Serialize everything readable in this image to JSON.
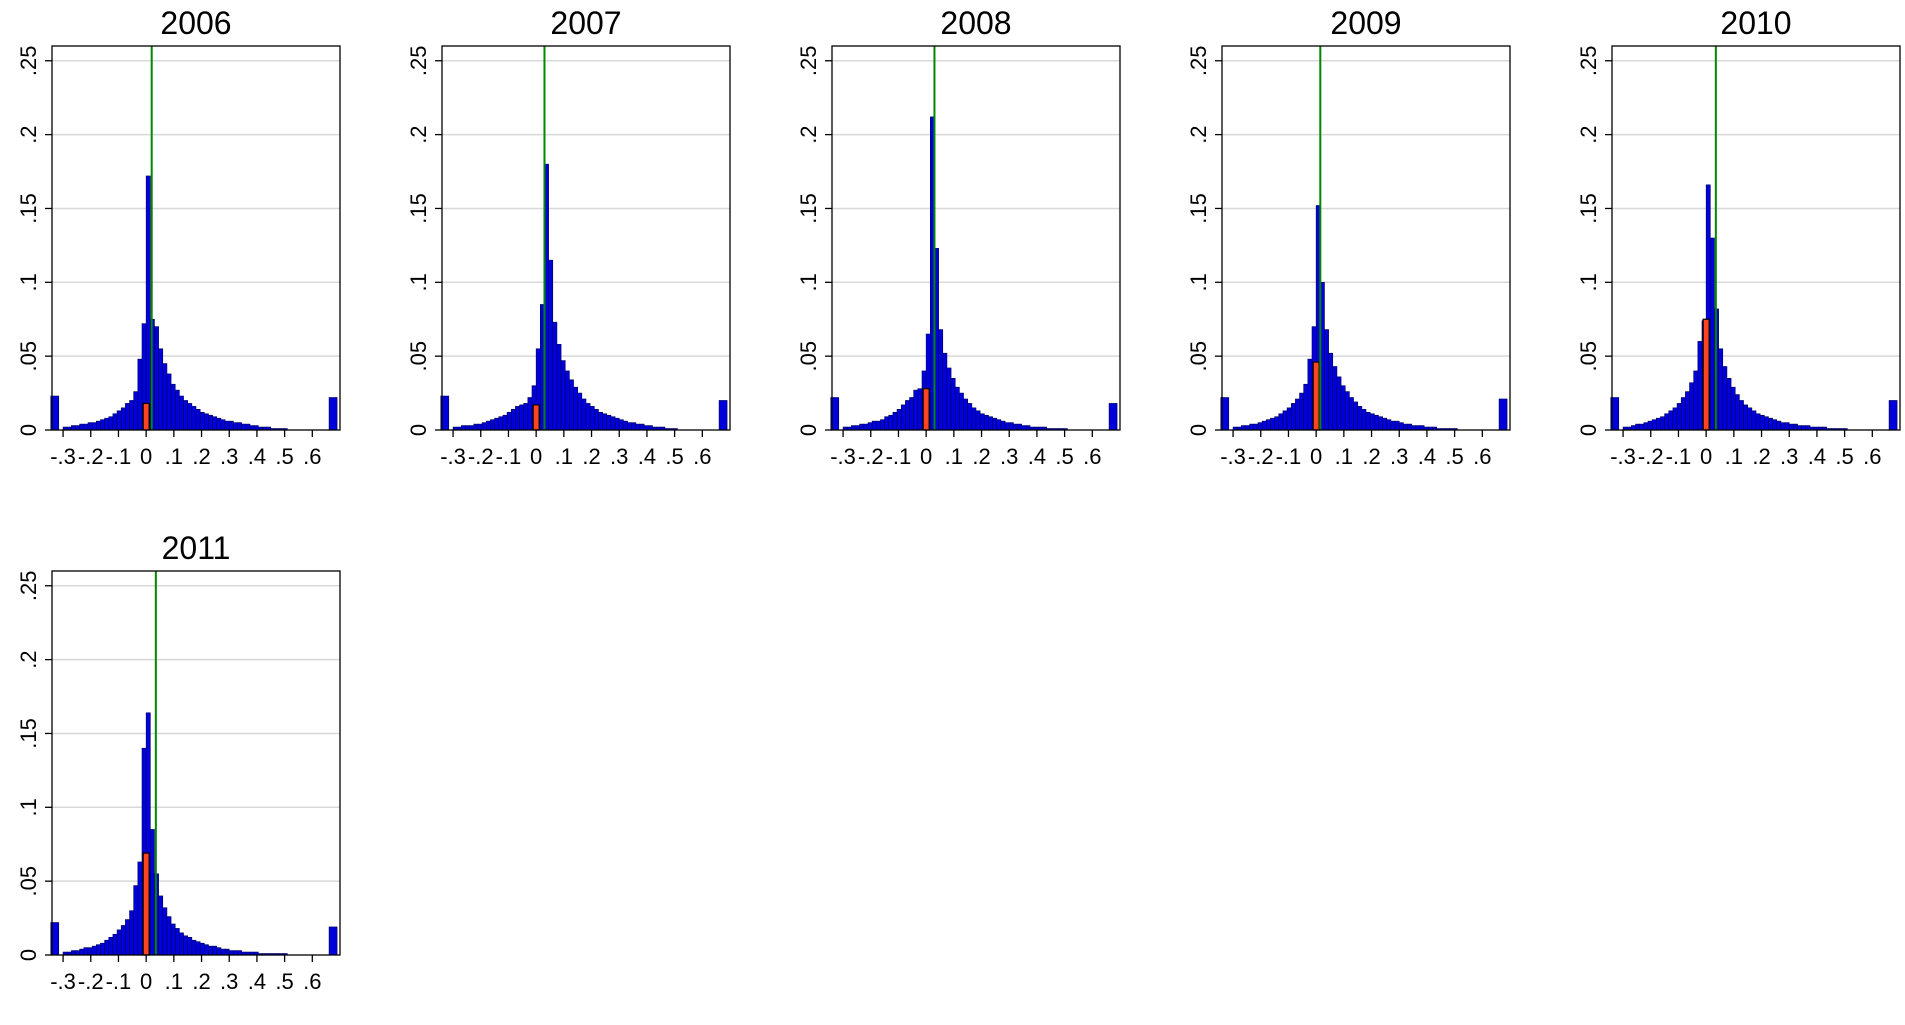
{
  "chart_data": [
    {
      "type": "bar",
      "title": "2006",
      "xlabel": "",
      "ylabel": "",
      "xlim": [
        -0.34,
        0.7
      ],
      "ylim": [
        0,
        0.26
      ],
      "x_ticks": [
        -0.3,
        -0.2,
        -0.1,
        0,
        0.1,
        0.2,
        0.3,
        0.4,
        0.5,
        0.6
      ],
      "x_tick_labels": [
        "-.3",
        "-.2",
        "-.1",
        "0",
        ".1",
        ".2",
        ".3",
        ".4",
        ".5",
        ".6"
      ],
      "y_ticks": [
        0,
        0.05,
        0.1,
        0.15,
        0.2,
        0.25
      ],
      "y_tick_labels": [
        "0",
        ".05",
        ".1",
        ".15",
        ".2",
        ".25"
      ],
      "grid": true,
      "bin_start": -0.3,
      "bin_width": 0.015,
      "values": [
        0.002,
        0.002,
        0.003,
        0.003,
        0.004,
        0.004,
        0.005,
        0.005,
        0.006,
        0.007,
        0.008,
        0.009,
        0.011,
        0.013,
        0.015,
        0.018,
        0.02,
        0.026,
        0.048,
        0.072,
        0.172,
        0.075,
        0.07,
        0.055,
        0.045,
        0.038,
        0.031,
        0.027,
        0.023,
        0.02,
        0.018,
        0.016,
        0.014,
        0.012,
        0.011,
        0.01,
        0.009,
        0.008,
        0.007,
        0.006,
        0.006,
        0.005,
        0.005,
        0.004,
        0.004,
        0.003,
        0.003,
        0.002,
        0.002,
        0.002,
        0.001,
        0.001,
        0.001,
        0.001
      ],
      "tail_low": {
        "x": -0.33,
        "value": 0.023
      },
      "tail_high": {
        "x": 0.675,
        "value": 0.022
      },
      "highlight": {
        "x": 0.0,
        "value": 0.018
      },
      "reference_line_x": 0.02,
      "colors": {
        "bars": "#0000dd",
        "highlight": "#ff4422",
        "reference_line": "#008800",
        "grid": "#d8d8d8"
      }
    },
    {
      "type": "bar",
      "title": "2007",
      "xlabel": "",
      "ylabel": "",
      "xlim": [
        -0.34,
        0.7
      ],
      "ylim": [
        0,
        0.26
      ],
      "x_ticks": [
        -0.3,
        -0.2,
        -0.1,
        0,
        0.1,
        0.2,
        0.3,
        0.4,
        0.5,
        0.6
      ],
      "x_tick_labels": [
        "-.3",
        "-.2",
        "-.1",
        "0",
        ".1",
        ".2",
        ".3",
        ".4",
        ".5",
        ".6"
      ],
      "y_ticks": [
        0,
        0.05,
        0.1,
        0.15,
        0.2,
        0.25
      ],
      "y_tick_labels": [
        "0",
        ".05",
        ".1",
        ".15",
        ".2",
        ".25"
      ],
      "grid": true,
      "bin_start": -0.3,
      "bin_width": 0.015,
      "values": [
        0.002,
        0.002,
        0.003,
        0.003,
        0.003,
        0.004,
        0.004,
        0.005,
        0.006,
        0.007,
        0.008,
        0.009,
        0.01,
        0.012,
        0.014,
        0.016,
        0.017,
        0.018,
        0.022,
        0.03,
        0.055,
        0.085,
        0.18,
        0.115,
        0.073,
        0.058,
        0.047,
        0.04,
        0.034,
        0.029,
        0.025,
        0.021,
        0.018,
        0.016,
        0.014,
        0.012,
        0.011,
        0.01,
        0.009,
        0.008,
        0.007,
        0.006,
        0.005,
        0.005,
        0.004,
        0.004,
        0.003,
        0.003,
        0.002,
        0.002,
        0.002,
        0.001,
        0.001,
        0.001
      ],
      "tail_low": {
        "x": -0.33,
        "value": 0.023
      },
      "tail_high": {
        "x": 0.675,
        "value": 0.02
      },
      "highlight": {
        "x": 0.0,
        "value": 0.017
      },
      "reference_line_x": 0.03,
      "colors": {
        "bars": "#0000dd",
        "highlight": "#ff4422",
        "reference_line": "#008800",
        "grid": "#d8d8d8"
      }
    },
    {
      "type": "bar",
      "title": "2008",
      "xlabel": "",
      "ylabel": "",
      "xlim": [
        -0.34,
        0.7
      ],
      "ylim": [
        0,
        0.26
      ],
      "x_ticks": [
        -0.3,
        -0.2,
        -0.1,
        0,
        0.1,
        0.2,
        0.3,
        0.4,
        0.5,
        0.6
      ],
      "x_tick_labels": [
        "-.3",
        "-.2",
        "-.1",
        "0",
        ".1",
        ".2",
        ".3",
        ".4",
        ".5",
        ".6"
      ],
      "y_ticks": [
        0,
        0.05,
        0.1,
        0.15,
        0.2,
        0.25
      ],
      "y_tick_labels": [
        "0",
        ".05",
        ".1",
        ".15",
        ".2",
        ".25"
      ],
      "grid": true,
      "bin_start": -0.3,
      "bin_width": 0.015,
      "values": [
        0.002,
        0.002,
        0.003,
        0.003,
        0.004,
        0.004,
        0.005,
        0.006,
        0.006,
        0.007,
        0.009,
        0.01,
        0.012,
        0.014,
        0.017,
        0.02,
        0.022,
        0.027,
        0.028,
        0.04,
        0.065,
        0.212,
        0.123,
        0.068,
        0.052,
        0.042,
        0.035,
        0.029,
        0.025,
        0.021,
        0.018,
        0.015,
        0.013,
        0.011,
        0.01,
        0.009,
        0.008,
        0.007,
        0.006,
        0.005,
        0.005,
        0.004,
        0.004,
        0.003,
        0.003,
        0.002,
        0.002,
        0.002,
        0.002,
        0.001,
        0.001,
        0.001,
        0.001,
        0.001
      ],
      "tail_low": {
        "x": -0.33,
        "value": 0.022
      },
      "tail_high": {
        "x": 0.675,
        "value": 0.018
      },
      "highlight": {
        "x": 0.0,
        "value": 0.028
      },
      "reference_line_x": 0.03,
      "colors": {
        "bars": "#0000dd",
        "highlight": "#ff4422",
        "reference_line": "#008800",
        "grid": "#d8d8d8"
      }
    },
    {
      "type": "bar",
      "title": "2009",
      "xlabel": "",
      "ylabel": "",
      "xlim": [
        -0.34,
        0.7
      ],
      "ylim": [
        0,
        0.26
      ],
      "x_ticks": [
        -0.3,
        -0.2,
        -0.1,
        0,
        0.1,
        0.2,
        0.3,
        0.4,
        0.5,
        0.6
      ],
      "x_tick_labels": [
        "-.3",
        "-.2",
        "-.1",
        "0",
        ".1",
        ".2",
        ".3",
        ".4",
        ".5",
        ".6"
      ],
      "y_ticks": [
        0,
        0.05,
        0.1,
        0.15,
        0.2,
        0.25
      ],
      "y_tick_labels": [
        "0",
        ".05",
        ".1",
        ".15",
        ".2",
        ".25"
      ],
      "grid": true,
      "bin_start": -0.3,
      "bin_width": 0.015,
      "values": [
        0.002,
        0.002,
        0.003,
        0.003,
        0.004,
        0.004,
        0.005,
        0.006,
        0.007,
        0.008,
        0.009,
        0.011,
        0.013,
        0.015,
        0.018,
        0.021,
        0.025,
        0.031,
        0.048,
        0.07,
        0.152,
        0.1,
        0.068,
        0.052,
        0.043,
        0.036,
        0.03,
        0.026,
        0.022,
        0.019,
        0.016,
        0.014,
        0.012,
        0.011,
        0.01,
        0.009,
        0.008,
        0.007,
        0.006,
        0.006,
        0.005,
        0.004,
        0.004,
        0.003,
        0.003,
        0.003,
        0.002,
        0.002,
        0.002,
        0.001,
        0.001,
        0.001,
        0.001,
        0.001
      ],
      "tail_low": {
        "x": -0.33,
        "value": 0.022
      },
      "tail_high": {
        "x": 0.675,
        "value": 0.021
      },
      "highlight": {
        "x": 0.0,
        "value": 0.046
      },
      "reference_line_x": 0.015,
      "colors": {
        "bars": "#0000dd",
        "highlight": "#ff4422",
        "reference_line": "#008800",
        "grid": "#d8d8d8"
      }
    },
    {
      "type": "bar",
      "title": "2010",
      "xlabel": "",
      "ylabel": "",
      "xlim": [
        -0.34,
        0.7
      ],
      "ylim": [
        0,
        0.26
      ],
      "x_ticks": [
        -0.3,
        -0.2,
        -0.1,
        0,
        0.1,
        0.2,
        0.3,
        0.4,
        0.5,
        0.6
      ],
      "x_tick_labels": [
        "-.3",
        "-.2",
        "-.1",
        "0",
        ".1",
        ".2",
        ".3",
        ".4",
        ".5",
        ".6"
      ],
      "y_ticks": [
        0,
        0.05,
        0.1,
        0.15,
        0.2,
        0.25
      ],
      "y_tick_labels": [
        "0",
        ".05",
        ".1",
        ".15",
        ".2",
        ".25"
      ],
      "grid": true,
      "bin_start": -0.3,
      "bin_width": 0.015,
      "values": [
        0.002,
        0.002,
        0.003,
        0.004,
        0.004,
        0.005,
        0.006,
        0.007,
        0.008,
        0.009,
        0.011,
        0.013,
        0.015,
        0.018,
        0.022,
        0.026,
        0.032,
        0.04,
        0.06,
        0.074,
        0.166,
        0.13,
        0.082,
        0.055,
        0.043,
        0.035,
        0.029,
        0.024,
        0.02,
        0.017,
        0.015,
        0.013,
        0.011,
        0.01,
        0.009,
        0.008,
        0.007,
        0.006,
        0.005,
        0.005,
        0.004,
        0.004,
        0.003,
        0.003,
        0.003,
        0.002,
        0.002,
        0.002,
        0.002,
        0.001,
        0.001,
        0.001,
        0.001,
        0.001
      ],
      "tail_low": {
        "x": -0.33,
        "value": 0.022
      },
      "tail_high": {
        "x": 0.675,
        "value": 0.02
      },
      "highlight": {
        "x": 0.0,
        "value": 0.075
      },
      "reference_line_x": 0.035,
      "colors": {
        "bars": "#0000dd",
        "highlight": "#ff4422",
        "reference_line": "#008800",
        "grid": "#d8d8d8"
      }
    },
    {
      "type": "bar",
      "title": "2011",
      "xlabel": "",
      "ylabel": "",
      "xlim": [
        -0.34,
        0.7
      ],
      "ylim": [
        0,
        0.26
      ],
      "x_ticks": [
        -0.3,
        -0.2,
        -0.1,
        0,
        0.1,
        0.2,
        0.3,
        0.4,
        0.5,
        0.6
      ],
      "x_tick_labels": [
        "-.3",
        "-.2",
        "-.1",
        "0",
        ".1",
        ".2",
        ".3",
        ".4",
        ".5",
        ".6"
      ],
      "y_ticks": [
        0,
        0.05,
        0.1,
        0.15,
        0.2,
        0.25
      ],
      "y_tick_labels": [
        "0",
        ".05",
        ".1",
        ".15",
        ".2",
        ".25"
      ],
      "grid": true,
      "bin_start": -0.3,
      "bin_width": 0.015,
      "values": [
        0.002,
        0.002,
        0.003,
        0.003,
        0.004,
        0.005,
        0.005,
        0.006,
        0.007,
        0.008,
        0.01,
        0.012,
        0.014,
        0.017,
        0.02,
        0.024,
        0.03,
        0.047,
        0.063,
        0.14,
        0.164,
        0.085,
        0.055,
        0.04,
        0.032,
        0.026,
        0.021,
        0.018,
        0.015,
        0.013,
        0.012,
        0.01,
        0.009,
        0.008,
        0.007,
        0.006,
        0.006,
        0.005,
        0.004,
        0.004,
        0.003,
        0.003,
        0.003,
        0.002,
        0.002,
        0.002,
        0.002,
        0.001,
        0.001,
        0.001,
        0.001,
        0.001,
        0.001,
        0.001
      ],
      "tail_low": {
        "x": -0.33,
        "value": 0.022
      },
      "tail_high": {
        "x": 0.675,
        "value": 0.019
      },
      "highlight": {
        "x": 0.0,
        "value": 0.069
      },
      "reference_line_x": 0.035,
      "colors": {
        "bars": "#0000dd",
        "highlight": "#ff4422",
        "reference_line": "#008800",
        "grid": "#d8d8d8"
      }
    }
  ]
}
